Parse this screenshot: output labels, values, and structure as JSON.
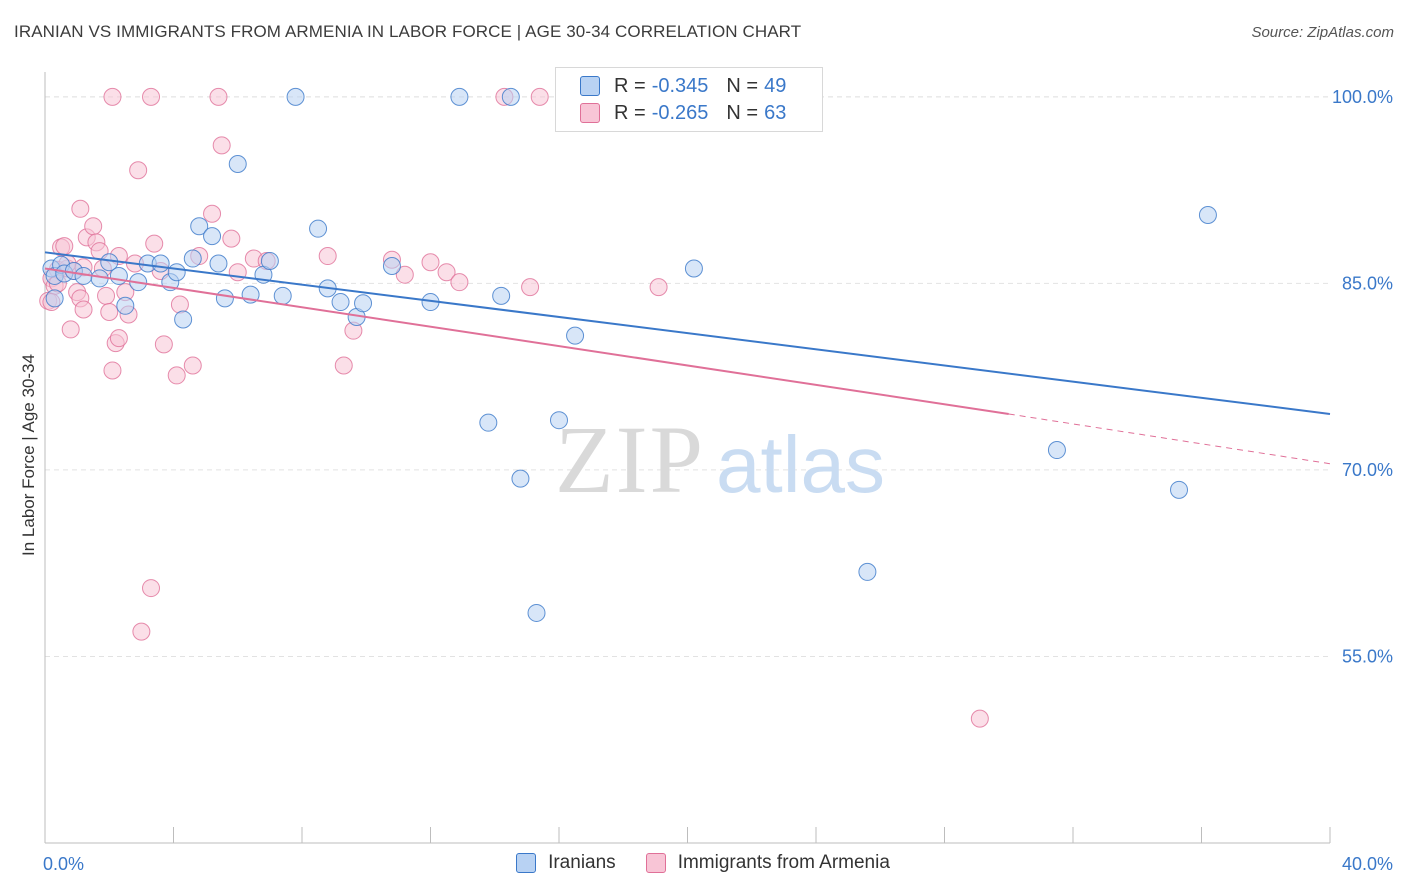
{
  "title": "IRANIAN VS IMMIGRANTS FROM ARMENIA IN LABOR FORCE | AGE 30-34 CORRELATION CHART",
  "source": "Source: ZipAtlas.com",
  "watermark": {
    "zip": "ZIP",
    "atlas": "atlas"
  },
  "legend": {
    "r_label": "R =",
    "n_label": "N =",
    "rows": [
      {
        "r": "-0.345",
        "n": "49"
      },
      {
        "r": "-0.265",
        "n": "63"
      }
    ]
  },
  "chart_data": {
    "type": "scatter",
    "title": "IRANIAN VS IMMIGRANTS FROM ARMENIA IN LABOR FORCE | AGE 30-34 CORRELATION CHART",
    "xlabel": "",
    "ylabel": "In Labor Force | Age 30-34",
    "xlim": [
      0,
      40
    ],
    "ylim": [
      40,
      102
    ],
    "x_tick_labels": [
      "0.0%",
      "40.0%"
    ],
    "y_ticks": [
      55,
      70,
      85,
      100
    ],
    "y_tick_labels": [
      "55.0%",
      "70.0%",
      "85.0%",
      "100.0%"
    ],
    "grid": true,
    "colors": {
      "blue": "#3a78c9",
      "blue_fill": "#b8d2f3",
      "pink": "#e07098",
      "pink_fill": "#f8c5d6"
    },
    "series": [
      {
        "name": "Iranians",
        "color": "#3a78c9",
        "trend": {
          "x": [
            0,
            40
          ],
          "y": [
            87.5,
            74.5
          ]
        },
        "points": [
          [
            0.2,
            86.2
          ],
          [
            0.3,
            85.6
          ],
          [
            0.5,
            86.5
          ],
          [
            0.6,
            85.8
          ],
          [
            0.9,
            86.0
          ],
          [
            1.2,
            85.6
          ],
          [
            1.7,
            85.4
          ],
          [
            2.0,
            86.7
          ],
          [
            2.3,
            85.6
          ],
          [
            2.5,
            83.2
          ],
          [
            2.9,
            85.1
          ],
          [
            3.2,
            86.6
          ],
          [
            3.6,
            86.6
          ],
          [
            3.9,
            85.1
          ],
          [
            4.1,
            85.9
          ],
          [
            4.3,
            82.1
          ],
          [
            4.6,
            87.0
          ],
          [
            4.8,
            89.6
          ],
          [
            5.2,
            88.8
          ],
          [
            5.4,
            86.6
          ],
          [
            5.6,
            83.8
          ],
          [
            6.0,
            94.6
          ],
          [
            6.4,
            84.1
          ],
          [
            6.8,
            85.7
          ],
          [
            7.0,
            86.8
          ],
          [
            7.4,
            84.0
          ],
          [
            7.8,
            100.0
          ],
          [
            8.5,
            89.4
          ],
          [
            8.8,
            84.6
          ],
          [
            9.2,
            83.5
          ],
          [
            9.7,
            82.3
          ],
          [
            9.9,
            83.4
          ],
          [
            10.8,
            86.4
          ],
          [
            12.0,
            83.5
          ],
          [
            12.9,
            100.0
          ],
          [
            13.8,
            73.8
          ],
          [
            14.2,
            84.0
          ],
          [
            14.5,
            100.0
          ],
          [
            14.8,
            69.3
          ],
          [
            15.3,
            58.5
          ],
          [
            16.0,
            74.0
          ],
          [
            16.5,
            80.8
          ],
          [
            18.5,
            100.0
          ],
          [
            20.2,
            86.2
          ],
          [
            25.6,
            61.8
          ],
          [
            31.5,
            71.6
          ],
          [
            35.3,
            68.4
          ],
          [
            36.2,
            90.5
          ],
          [
            0.3,
            83.8
          ]
        ]
      },
      {
        "name": "Immigrants from Armenia",
        "color": "#e07098",
        "trend": {
          "x": [
            0,
            30
          ],
          "y": [
            86.2,
            74.5
          ]
        },
        "trend_dashed": {
          "x": [
            30,
            40
          ],
          "y": [
            74.5,
            70.5
          ]
        },
        "points": [
          [
            0.1,
            83.6
          ],
          [
            0.2,
            85.4
          ],
          [
            0.3,
            84.8
          ],
          [
            0.4,
            86.1
          ],
          [
            0.5,
            87.9
          ],
          [
            0.6,
            88.0
          ],
          [
            0.7,
            86.2
          ],
          [
            0.8,
            81.3
          ],
          [
            0.9,
            86.0
          ],
          [
            1.0,
            84.3
          ],
          [
            1.1,
            83.8
          ],
          [
            1.1,
            91.0
          ],
          [
            1.2,
            82.9
          ],
          [
            1.3,
            88.7
          ],
          [
            1.5,
            89.6
          ],
          [
            1.6,
            88.3
          ],
          [
            1.7,
            87.6
          ],
          [
            1.8,
            86.2
          ],
          [
            1.9,
            84.0
          ],
          [
            2.0,
            82.7
          ],
          [
            2.1,
            78.0
          ],
          [
            2.2,
            80.2
          ],
          [
            2.3,
            87.2
          ],
          [
            2.3,
            80.6
          ],
          [
            2.5,
            84.3
          ],
          [
            2.6,
            82.5
          ],
          [
            2.8,
            86.6
          ],
          [
            2.9,
            94.1
          ],
          [
            3.0,
            57.0
          ],
          [
            3.3,
            60.5
          ],
          [
            3.4,
            88.2
          ],
          [
            3.6,
            86.0
          ],
          [
            3.7,
            80.1
          ],
          [
            4.1,
            77.6
          ],
          [
            4.2,
            83.3
          ],
          [
            4.6,
            78.4
          ],
          [
            4.8,
            87.2
          ],
          [
            5.2,
            90.6
          ],
          [
            5.4,
            100.0
          ],
          [
            5.5,
            96.1
          ],
          [
            5.8,
            88.6
          ],
          [
            6.0,
            85.9
          ],
          [
            6.5,
            87.0
          ],
          [
            6.9,
            86.8
          ],
          [
            8.8,
            87.2
          ],
          [
            9.3,
            78.4
          ],
          [
            9.6,
            81.2
          ],
          [
            10.8,
            86.9
          ],
          [
            11.2,
            85.7
          ],
          [
            12.0,
            86.7
          ],
          [
            12.5,
            85.9
          ],
          [
            12.9,
            85.1
          ],
          [
            14.3,
            100.0
          ],
          [
            15.1,
            84.7
          ],
          [
            15.4,
            100.0
          ],
          [
            19.1,
            84.7
          ],
          [
            29.1,
            50.0
          ],
          [
            2.1,
            100.0
          ],
          [
            0.2,
            83.5
          ],
          [
            0.4,
            85.0
          ],
          [
            0.7,
            86.6
          ],
          [
            1.2,
            86.3
          ],
          [
            3.3,
            100.0
          ]
        ]
      }
    ]
  }
}
